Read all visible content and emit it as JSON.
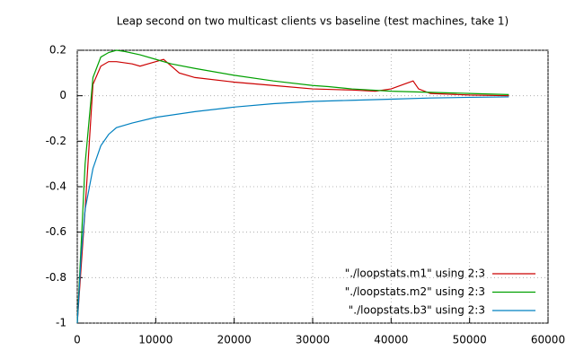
{
  "chart_data": {
    "type": "line",
    "title": "Leap second on two multicast clients vs baseline (test machines, take 1)",
    "xlim": [
      0,
      60000
    ],
    "xticks": [
      0,
      10000,
      20000,
      30000,
      40000,
      50000,
      60000
    ],
    "ylim": [
      -1,
      0.2
    ],
    "yticks": [
      0.2,
      0,
      -0.2,
      -0.4,
      -0.6,
      -0.8,
      -1
    ],
    "grid": true,
    "legend": "bottom-right",
    "series": [
      {
        "name": "\"./loopstats.m1\" using 2:3",
        "color": "#cc0000",
        "x": [
          0,
          1000,
          2000,
          3000,
          4000,
          5000,
          6000,
          7000,
          8000,
          9000,
          10000,
          11000,
          12000,
          13000,
          15000,
          20000,
          25000,
          30000,
          35000,
          38000,
          40000,
          42000,
          42800,
          43500,
          45000,
          50000,
          55000
        ],
        "values": [
          -1,
          -0.5,
          0.05,
          0.13,
          0.15,
          0.15,
          0.145,
          0.14,
          0.13,
          0.14,
          0.15,
          0.16,
          0.13,
          0.1,
          0.08,
          0.06,
          0.045,
          0.03,
          0.025,
          0.02,
          0.03,
          0.055,
          0.065,
          0.03,
          0.01,
          0.003,
          0
        ]
      },
      {
        "name": "\"./loopstats.m2\" using 2:3",
        "color": "#00a000",
        "x": [
          0,
          1000,
          2000,
          3000,
          4000,
          5000,
          6000,
          8000,
          10000,
          12000,
          15000,
          20000,
          25000,
          30000,
          32000,
          35000,
          40000,
          45000,
          50000,
          55000
        ],
        "values": [
          -1,
          -0.3,
          0.08,
          0.17,
          0.19,
          0.2,
          0.195,
          0.18,
          0.16,
          0.14,
          0.12,
          0.09,
          0.065,
          0.045,
          0.04,
          0.03,
          0.02,
          0.015,
          0.01,
          0.005
        ]
      },
      {
        "name": "\"./loopstats.b3\" using 2:3",
        "color": "#0080c0",
        "x": [
          0,
          500,
          1000,
          2000,
          3000,
          4000,
          5000,
          7000,
          10000,
          15000,
          20000,
          25000,
          30000,
          35000,
          40000,
          45000,
          50000,
          55000
        ],
        "values": [
          -1,
          -0.7,
          -0.5,
          -0.32,
          -0.22,
          -0.17,
          -0.14,
          -0.12,
          -0.095,
          -0.07,
          -0.05,
          -0.035,
          -0.025,
          -0.02,
          -0.015,
          -0.01,
          -0.007,
          -0.005
        ]
      }
    ]
  }
}
